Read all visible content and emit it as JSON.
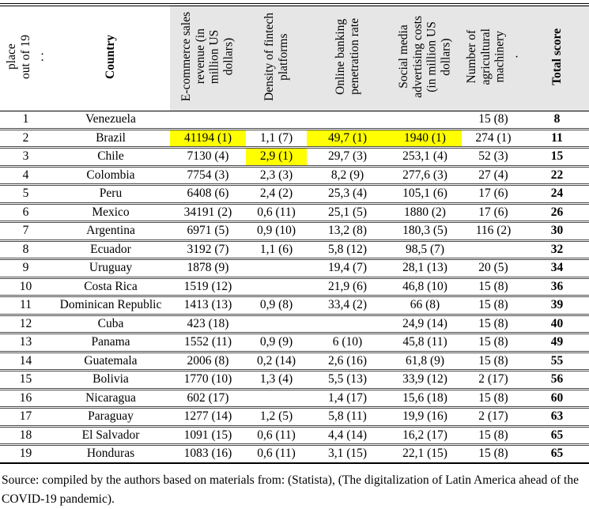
{
  "table": {
    "highlight_color": "#ffff00",
    "header_shade_color": "#e7e6e6",
    "columns": [
      {
        "id": "place",
        "label_lines": [
          "place",
          "out of 19",
          ". ."
        ],
        "bold": false,
        "shaded": false
      },
      {
        "id": "country",
        "label_lines": [
          "Country"
        ],
        "bold": true,
        "shaded": false
      },
      {
        "id": "ecommerce",
        "label_lines": [
          "E-commerce sales",
          "revenue (in",
          "million US",
          "dollars)"
        ],
        "bold": false,
        "shaded": true
      },
      {
        "id": "fintech",
        "label_lines": [
          "Density of fintech",
          "platforms"
        ],
        "bold": false,
        "shaded": true
      },
      {
        "id": "banking",
        "label_lines": [
          "Online banking",
          "penetration rate"
        ],
        "bold": false,
        "shaded": true
      },
      {
        "id": "social",
        "label_lines": [
          "Social media",
          "advertising costs",
          "(in million US",
          "dollars)"
        ],
        "bold": false,
        "shaded": true
      },
      {
        "id": "machinery",
        "label_lines": [
          "Number of",
          "agricultural",
          "machinery",
          "."
        ],
        "bold": false,
        "shaded": true
      },
      {
        "id": "total",
        "label_lines": [
          "Total score"
        ],
        "bold": true,
        "shaded": true
      }
    ],
    "rows": [
      {
        "place": "1",
        "country": "Venezuela",
        "ecommerce": "",
        "fintech": "",
        "banking": "",
        "social": "",
        "machinery": "15 (8)",
        "total": "8",
        "highlights": []
      },
      {
        "place": "2",
        "country": "Brazil",
        "ecommerce": "41194 (1)",
        "fintech": "1,1 (7)",
        "banking": "49,7 (1)",
        "social": "1940 (1)",
        "machinery": "274 (1)",
        "total": "11",
        "highlights": [
          "ecommerce",
          "banking",
          "social"
        ]
      },
      {
        "place": "3",
        "country": "Chile",
        "ecommerce": "7130 (4)",
        "fintech": "2,9 (1)",
        "banking": "29,7 (3)",
        "social": "253,1 (4)",
        "machinery": "52 (3)",
        "total": "15",
        "highlights": [
          "fintech"
        ]
      },
      {
        "place": "4",
        "country": "Colombia",
        "ecommerce": "7754 (3)",
        "fintech": "2,3 (3)",
        "banking": "8,2 (9)",
        "social": "277,6 (3)",
        "machinery": "27 (4)",
        "total": "22",
        "highlights": []
      },
      {
        "place": "5",
        "country": "Peru",
        "ecommerce": "6408 (6)",
        "fintech": "2,4 (2)",
        "banking": "25,3 (4)",
        "social": "105,1 (6)",
        "machinery": "17 (6)",
        "total": "24",
        "highlights": []
      },
      {
        "place": "6",
        "country": "Mexico",
        "ecommerce": "34191 (2)",
        "fintech": "0,6 (11)",
        "banking": "25,1 (5)",
        "social": "1880 (2)",
        "machinery": "17 (6)",
        "total": "26",
        "highlights": []
      },
      {
        "place": "7",
        "country": "Argentina",
        "ecommerce": "6971 (5)",
        "fintech": "0,9 (10)",
        "banking": "13,2 (8)",
        "social": "180,3 (5)",
        "machinery": "116 (2)",
        "total": "30",
        "highlights": []
      },
      {
        "place": "8",
        "country": "Ecuador",
        "ecommerce": "3192 (7)",
        "fintech": "1,1 (6)",
        "banking": "5,8 (12)",
        "social": "98,5 (7)",
        "machinery": "",
        "total": "32",
        "highlights": []
      },
      {
        "place": "9",
        "country": "Uruguay",
        "ecommerce": "1878 (9)",
        "fintech": "",
        "banking": "19,4 (7)",
        "social": "28,1 (13)",
        "machinery": "20 (5)",
        "total": "34",
        "highlights": []
      },
      {
        "place": "10",
        "country": "Costa Rica",
        "ecommerce": "1519 (12)",
        "fintech": "",
        "banking": "21,9 (6)",
        "social": "46,8 (10)",
        "machinery": "15 (8)",
        "total": "36",
        "highlights": []
      },
      {
        "place": "11",
        "country": "Dominican Republic",
        "ecommerce": "1413 (13)",
        "fintech": "0,9 (8)",
        "banking": "33,4 (2)",
        "social": "66 (8)",
        "machinery": "15 (8)",
        "total": "39",
        "highlights": []
      },
      {
        "place": "12",
        "country": "Cuba",
        "ecommerce": "423 (18)",
        "fintech": "",
        "banking": "",
        "social": "24,9 (14)",
        "machinery": "15 (8)",
        "total": "40",
        "highlights": []
      },
      {
        "place": "13",
        "country": "Panama",
        "ecommerce": "1552 (11)",
        "fintech": "0,9 (9)",
        "banking": "6 (10)",
        "social": "45,8 (11)",
        "machinery": "15 (8)",
        "total": "49",
        "highlights": []
      },
      {
        "place": "14",
        "country": "Guatemala",
        "ecommerce": "2006 (8)",
        "fintech": "0,2 (14)",
        "banking": "2,6 (16)",
        "social": "61,8 (9)",
        "machinery": "15 (8)",
        "total": "55",
        "highlights": []
      },
      {
        "place": "15",
        "country": "Bolivia",
        "ecommerce": "1770 (10)",
        "fintech": "1,3 (4)",
        "banking": "5,5 (13)",
        "social": "33,9 (12)",
        "machinery": "2 (17)",
        "total": "56",
        "highlights": []
      },
      {
        "place": "16",
        "country": "Nicaragua",
        "ecommerce": "602 (17)",
        "fintech": "",
        "banking": "1,4 (17)",
        "social": "15,6 (18)",
        "machinery": "15 (8)",
        "total": "60",
        "highlights": []
      },
      {
        "place": "17",
        "country": "Paraguay",
        "ecommerce": "1277 (14)",
        "fintech": "1,2 (5)",
        "banking": "5,8 (11)",
        "social": "19,9 (16)",
        "machinery": "2 (17)",
        "total": "63",
        "highlights": []
      },
      {
        "place": "18",
        "country": "El Salvador",
        "ecommerce": "1091 (15)",
        "fintech": "0,6 (11)",
        "banking": "4,4 (14)",
        "social": "16,2 (17)",
        "machinery": "15 (8)",
        "total": "65",
        "highlights": []
      },
      {
        "place": "19",
        "country": "Honduras",
        "ecommerce": "1083 (16)",
        "fintech": "0,6 (11)",
        "banking": "3,1 (15)",
        "social": "22,1 (15)",
        "machinery": "15 (8)",
        "total": "65",
        "highlights": []
      }
    ]
  },
  "source_note": "Source: compiled by the authors based on materials from: (Statista), (The digitalization of Latin America ahead of the COVID-19 pandemic)."
}
